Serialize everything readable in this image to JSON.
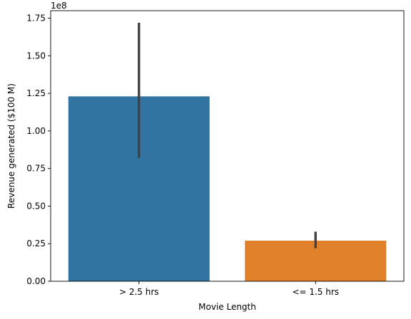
{
  "chart_data": {
    "type": "bar",
    "title": "",
    "xlabel": "Movie Length",
    "ylabel": "Revenue generated ($100 M)",
    "y_offset_label": "1e8",
    "y_scale": 100000000,
    "ylim": [
      0,
      1.8
    ],
    "categories": [
      "> 2.5 hrs",
      "<= 1.5 hrs"
    ],
    "values": [
      1.23,
      0.27
    ],
    "error_low": [
      0.82,
      0.22
    ],
    "error_high": [
      1.72,
      0.33
    ],
    "colors": [
      "#3274a1",
      "#e1812c"
    ],
    "error_color": "#424242",
    "yticks": [
      0.0,
      0.25,
      0.5,
      0.75,
      1.0,
      1.25,
      1.5,
      1.75
    ],
    "ytick_labels": [
      "0.00",
      "0.25",
      "0.50",
      "0.75",
      "1.00",
      "1.25",
      "1.50",
      "1.75"
    ]
  }
}
